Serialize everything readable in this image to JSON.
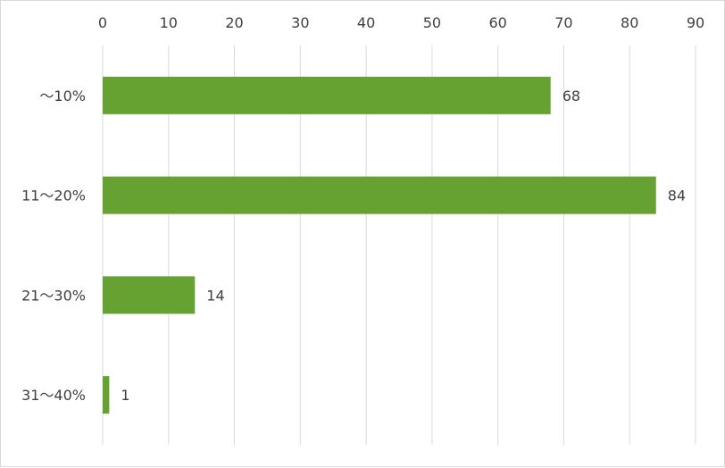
{
  "chart_data": {
    "type": "bar",
    "orientation": "horizontal",
    "categories": [
      "～10%",
      "11～20%",
      "21～30%",
      "31～40%"
    ],
    "values": [
      68,
      84,
      14,
      1
    ],
    "data_labels": [
      "68",
      "84",
      "14",
      "1"
    ],
    "x_ticks": [
      "0",
      "10",
      "20",
      "30",
      "40",
      "50",
      "60",
      "70",
      "80",
      "90"
    ],
    "xlim": [
      0,
      90
    ],
    "x_axis_position": "top",
    "title": "",
    "xlabel": "",
    "ylabel": "",
    "grid": true,
    "legend": "none",
    "bar_color": "#66a232",
    "grid_color": "#d9d9d9"
  }
}
